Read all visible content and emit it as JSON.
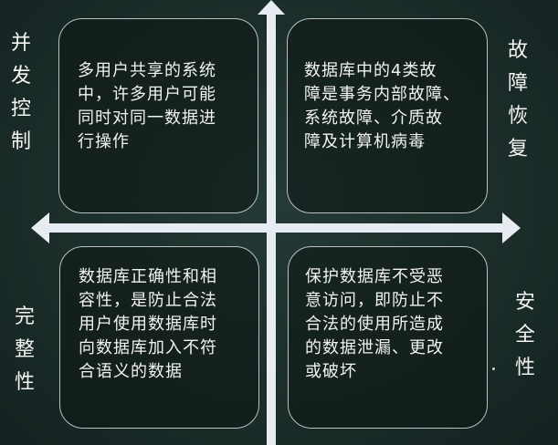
{
  "quadrants": {
    "top_left": "多用户共享的系统\n中，许多用户可能\n同时对同一数据进\n行操作",
    "top_right": "数据库中的4类故\n障是事务内部故障、\n系统故障、介质故\n障及计算机病毒",
    "bottom_left": "数据库正确性和相\n容性，是防止合法\n用户使用数据库时\n向数据库加入不符\n合语义的数据",
    "bottom_right": "保护数据库不受恶\n意访问，即防止不\n合法的使用所造成\n的数据泄漏、更改\n或破坏"
  },
  "labels": {
    "concurrency": "并发控制",
    "recovery": "故障恢复",
    "integrity": "完整性",
    "security": "安全性"
  },
  "colors": {
    "background": "#1b2c29",
    "axis": "#e6ecf2",
    "box_border": "#b9c2bf",
    "text": "#f2f2f2"
  }
}
